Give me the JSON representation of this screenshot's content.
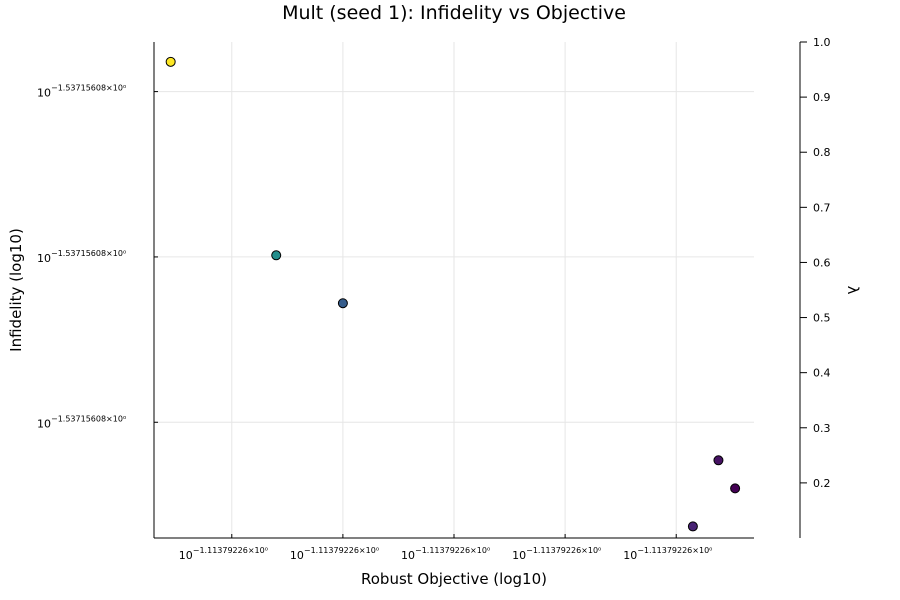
{
  "chart_data": {
    "type": "scatter",
    "title": "Mult (seed 1): Infidelity vs Objective",
    "xlabel": "Robust Objective (log10)",
    "ylabel": "Infidelity (log10)",
    "colorbar_label": "λ",
    "grid": true,
    "legend": "none",
    "x_tick_labels": [
      {
        "base": "10",
        "exp": "−1.11379226×10⁰"
      },
      {
        "base": "10",
        "exp": "−1.11379226×10⁰"
      },
      {
        "base": "10",
        "exp": "−1.11379226×10⁰"
      },
      {
        "base": "10",
        "exp": "−1.11379226×10⁰"
      },
      {
        "base": "10",
        "exp": "−1.11379226×10⁰"
      }
    ],
    "y_tick_labels": [
      {
        "base": "10",
        "exp": "−1.53715608×10⁰"
      },
      {
        "base": "10",
        "exp": "−1.53715608×10⁰"
      },
      {
        "base": "10",
        "exp": "−1.53715608×10⁰"
      }
    ],
    "colorbar": {
      "range": [
        0.1,
        1.0
      ],
      "ticks": [
        0.2,
        0.3,
        0.4,
        0.5,
        0.6,
        0.7,
        0.8,
        0.9,
        1.0
      ],
      "tick_labels": [
        "0.2",
        "0.3",
        "0.4",
        "0.5",
        "0.6",
        "0.7",
        "0.8",
        "0.9",
        "1.0"
      ],
      "colormap": "viridis"
    },
    "x_ticks": [
      0.5,
      1.5,
      2.5,
      3.5,
      4.5
    ],
    "y_ticks": [
      0.5,
      1.5,
      2.5
    ],
    "xlim": [
      -0.2,
      5.2
    ],
    "ylim": [
      -0.2,
      2.8
    ],
    "points": [
      {
        "x": -0.05,
        "y": 2.68,
        "lambda": 1.0
      },
      {
        "x": 0.9,
        "y": 1.51,
        "lambda": 0.6
      },
      {
        "x": 1.5,
        "y": 1.22,
        "lambda": 0.4
      },
      {
        "x": 4.65,
        "y": -0.13,
        "lambda": 0.2
      },
      {
        "x": 4.88,
        "y": 0.27,
        "lambda": 0.15
      },
      {
        "x": 5.03,
        "y": 0.1,
        "lambda": 0.1
      }
    ]
  }
}
